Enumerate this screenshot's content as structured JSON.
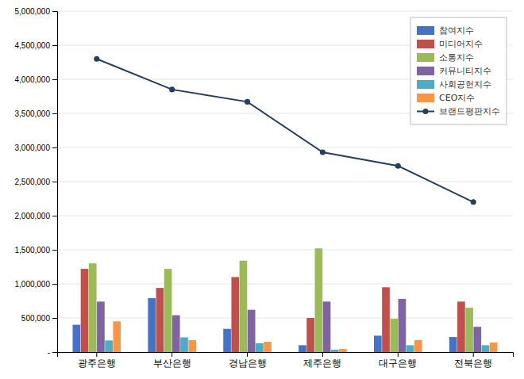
{
  "chart_data": {
    "type": "bar",
    "categories": [
      "광주은행",
      "부산은행",
      "경남은행",
      "제주은행",
      "대구은행",
      "전북은행"
    ],
    "series": [
      {
        "name": "참여지수",
        "type": "bar",
        "color": "#4472c4",
        "values": [
          400000,
          790000,
          340000,
          100000,
          240000,
          220000
        ]
      },
      {
        "name": "미디어지수",
        "type": "bar",
        "color": "#c0504d",
        "values": [
          1220000,
          940000,
          1100000,
          500000,
          950000,
          740000
        ]
      },
      {
        "name": "소통지수",
        "type": "bar",
        "color": "#9bbb59",
        "values": [
          1300000,
          1220000,
          1340000,
          1520000,
          490000,
          650000
        ]
      },
      {
        "name": "커뮤니티지수",
        "type": "bar",
        "color": "#8064a2",
        "values": [
          740000,
          540000,
          620000,
          740000,
          780000,
          370000
        ]
      },
      {
        "name": "사회공헌지수",
        "type": "bar",
        "color": "#4bacc6",
        "values": [
          170000,
          215000,
          130000,
          35000,
          100000,
          100000
        ]
      },
      {
        "name": "CEO지수",
        "type": "bar",
        "color": "#f79646",
        "values": [
          450000,
          175000,
          150000,
          45000,
          175000,
          140000
        ]
      },
      {
        "name": "브랜드평판지수",
        "type": "line",
        "color": "#243f60",
        "marker": "circle",
        "values": [
          4300000,
          3850000,
          3670000,
          2930000,
          2730000,
          2200000
        ]
      }
    ],
    "ylim": [
      0,
      5000000
    ],
    "yticks": [
      {
        "value": 0,
        "label": "-"
      },
      {
        "value": 500000,
        "label": "500,000"
      },
      {
        "value": 1000000,
        "label": "1,000,000"
      },
      {
        "value": 1500000,
        "label": "1,500,000"
      },
      {
        "value": 2000000,
        "label": "2,000,000"
      },
      {
        "value": 2500000,
        "label": "2,500,000"
      },
      {
        "value": 3000000,
        "label": "3,000,000"
      },
      {
        "value": 3500000,
        "label": "3,500,000"
      },
      {
        "value": 4000000,
        "label": "4,000,000"
      },
      {
        "value": 4500000,
        "label": "4,500,000"
      },
      {
        "value": 5000000,
        "label": "5,000,000"
      }
    ],
    "grid": true,
    "legend": "upper right"
  }
}
